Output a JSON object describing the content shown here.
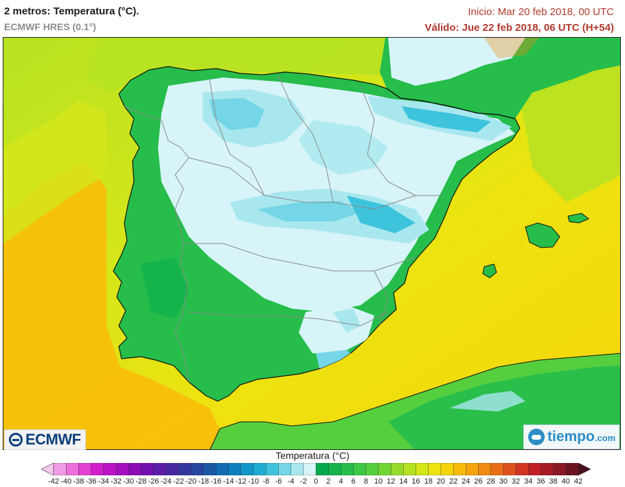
{
  "header": {
    "title": "2 metros: Temperatura (°C).",
    "model": "ECMWF HRES (0.1°)",
    "init": "Inicio: Mar 20 feb 2018, 00 UTC",
    "valid": "Válido: Jue 22 feb 2018, 06 UTC (H+54)"
  },
  "logos": {
    "left": "ECMWF",
    "right_main": "tiempo",
    "right_domain": ".com"
  },
  "legend": {
    "title": "Temperatura (°C)",
    "labels": [
      -42,
      -40,
      -38,
      -36,
      -34,
      -32,
      -30,
      -28,
      -26,
      -24,
      -22,
      -20,
      -18,
      -16,
      -14,
      -12,
      -10,
      -8,
      -6,
      -4,
      -2,
      0,
      2,
      4,
      6,
      8,
      10,
      12,
      14,
      16,
      18,
      20,
      22,
      24,
      26,
      28,
      30,
      32,
      34,
      36,
      38,
      40,
      42
    ],
    "colors": [
      "#f4c9ee",
      "#f19be6",
      "#ec6fdc",
      "#e440d3",
      "#d21ecb",
      "#bb12c4",
      "#a30ebd",
      "#8c0cb7",
      "#7410b0",
      "#5e1aa9",
      "#4826a3",
      "#3435a0",
      "#25459f",
      "#1a58a6",
      "#136bb1",
      "#0f80bd",
      "#1296c9",
      "#1eadd3",
      "#3ec3dc",
      "#74d6e6",
      "#a9e7ef",
      "#d7f4f8",
      "#05a84a",
      "#14b34c",
      "#26bd4b",
      "#3cc747",
      "#56cf3f",
      "#74d636",
      "#95dc2c",
      "#b6e222",
      "#d4e61a",
      "#ede310",
      "#f6d40b",
      "#f8bd0a",
      "#f6a40d",
      "#f08a12",
      "#e96e18",
      "#de521e",
      "#d23523",
      "#c01f25",
      "#a71a25",
      "#8b1725",
      "#6b1422",
      "#4a0f1c"
    ]
  },
  "map": {
    "region": "Península Ibérica y Baleares",
    "colors": {
      "sea_warm": "#f2b313",
      "sea_mid": "#eae10e",
      "sea_cool": "#b6e222",
      "land_green_dark": "#26bd4b",
      "land_green_light": "#56cf3f",
      "cold_0": "#d7f4f8",
      "cold_-2": "#a9e7ef",
      "cold_-4": "#74d6e6",
      "cold_-6": "#3ec3dc",
      "border": "#8a8a8a",
      "coast": "#111111"
    }
  }
}
